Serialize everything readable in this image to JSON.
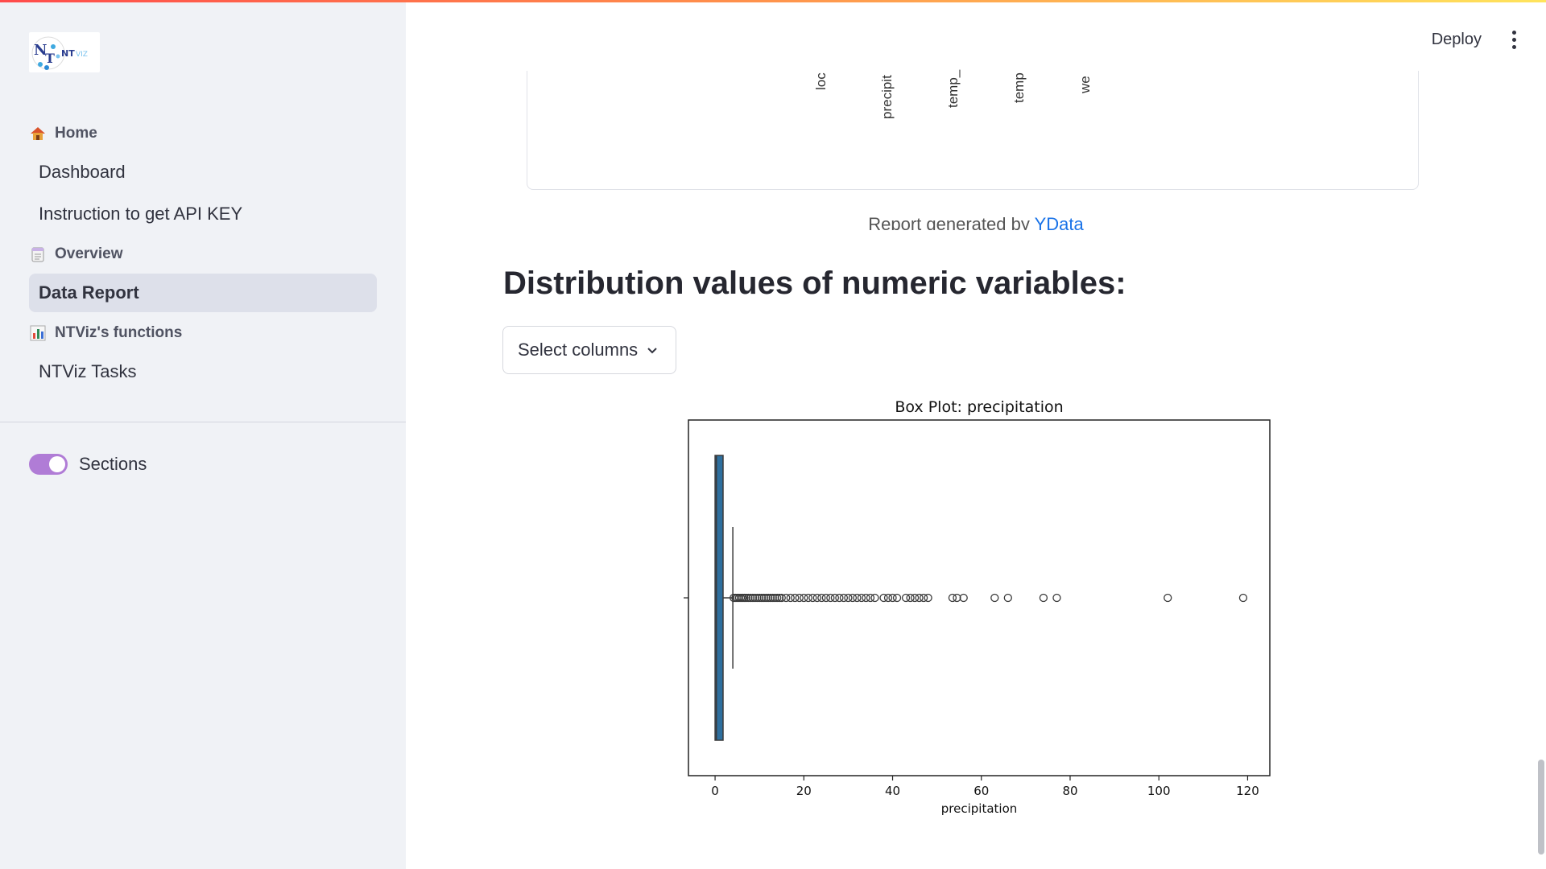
{
  "sidebar": {
    "sections": [
      {
        "label": "Home",
        "icon": "house-icon",
        "items": [
          "Dashboard",
          "Instruction to get API KEY"
        ]
      },
      {
        "label": "Overview",
        "icon": "notepad-icon",
        "items": [
          "Data Report"
        ]
      },
      {
        "label": "NTViz's functions",
        "icon": "bar-chart-icon",
        "items": [
          "NTViz Tasks"
        ]
      }
    ],
    "active_item": "Data Report",
    "toggle_label": "Sections",
    "toggle_on": true
  },
  "header": {
    "deploy_label": "Deploy"
  },
  "report": {
    "rotated_labels": [
      "loc",
      "precipit",
      "temp_",
      "temp",
      "we"
    ],
    "footer_text": "Report generated by ",
    "footer_link": "YData"
  },
  "main": {
    "section_title": "Distribution values of numeric variables:",
    "select_placeholder": "Select columns"
  },
  "chart_data": {
    "type": "box",
    "title": "Box Plot: precipitation",
    "xlabel": "precipitation",
    "ylabel": "",
    "xlim": [
      -6,
      125
    ],
    "xticks": [
      0,
      20,
      40,
      60,
      80,
      100,
      120
    ],
    "box": {
      "q1": 0,
      "median": 0.3,
      "q3": 1.8,
      "whisker_low": 0,
      "whisker_high": 4
    },
    "outliers": [
      4.2,
      4.6,
      5,
      5.4,
      5.8,
      6.2,
      6.6,
      7,
      7.5,
      8,
      8.5,
      9,
      9.5,
      10,
      10.5,
      11,
      11.5,
      12,
      12.5,
      13,
      13.5,
      14,
      14.5,
      15,
      16,
      17,
      18,
      19,
      20,
      21,
      22,
      23,
      24,
      25,
      26,
      27,
      28,
      29,
      30,
      31,
      32,
      33,
      34,
      35,
      36,
      38,
      39,
      40,
      41,
      43,
      44,
      45,
      46,
      47,
      48,
      53.5,
      54.5,
      56,
      63,
      66,
      74,
      77,
      102,
      119
    ]
  },
  "colors": {
    "box": "#2e6f9e",
    "accent_toggle": "#b07cd6",
    "link": "#1a73e8"
  }
}
